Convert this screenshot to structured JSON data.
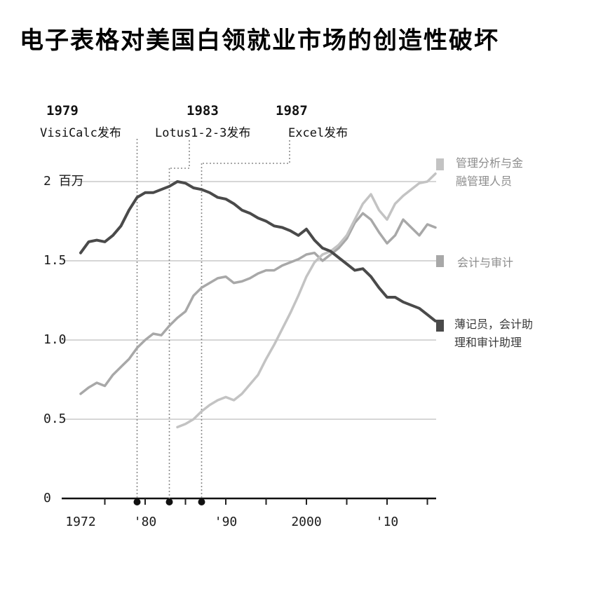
{
  "title": "电子表格对美国白领就业市场的创造性破坏",
  "legend": {
    "items": [
      {
        "lines": [
          "管理分析与金",
          "融管理人员"
        ],
        "color": "#c3c3c3",
        "text_color": "#8c8c8c"
      },
      {
        "lines": [
          "会计与审计",
          ""
        ],
        "color": "#a8a8a8",
        "text_color": "#8c8c8c"
      },
      {
        "lines": [
          "薄记员，会计助",
          "理和审计助理"
        ],
        "color": "#4a4a4a",
        "text_color": "#383838"
      }
    ]
  },
  "chart_data": {
    "type": "line",
    "title": "电子表格对美国白领就业市场的创造性破坏",
    "ylabel": "百万",
    "xlabel": "",
    "xlim": [
      1972,
      2017
    ],
    "ylim": [
      0,
      2.15
    ],
    "grid": true,
    "legend_position": "right",
    "yticks": [
      {
        "value": 0,
        "label": "0"
      },
      {
        "value": 0.5,
        "label": "0.5"
      },
      {
        "value": 1.0,
        "label": "1.0"
      },
      {
        "value": 1.5,
        "label": "1.5"
      },
      {
        "value": 2.0,
        "label": "2 百万"
      }
    ],
    "xticks": [
      {
        "year": 1972,
        "label": "1972"
      },
      {
        "year": 1980,
        "label": "'80"
      },
      {
        "year": 1990,
        "label": "'90"
      },
      {
        "year": 2000,
        "label": "2000"
      },
      {
        "year": 2010,
        "label": "'10"
      }
    ],
    "events": [
      {
        "year": 1979,
        "year_label": "1979",
        "label": "VisiCalc发布"
      },
      {
        "year": 1983,
        "year_label": "1983",
        "label": "Lotus1-2-3发布"
      },
      {
        "year": 1987,
        "year_label": "1987",
        "label": "Excel发布"
      }
    ],
    "series": [
      {
        "id": "accountants",
        "name": "会计与审计",
        "color": "#a8a8a8",
        "width": 3.5,
        "points": [
          [
            1972,
            0.66
          ],
          [
            1973,
            0.7
          ],
          [
            1974,
            0.73
          ],
          [
            1975,
            0.71
          ],
          [
            1976,
            0.78
          ],
          [
            1977,
            0.83
          ],
          [
            1978,
            0.88
          ],
          [
            1979,
            0.95
          ],
          [
            1980,
            1.0
          ],
          [
            1981,
            1.04
          ],
          [
            1982,
            1.03
          ],
          [
            1983,
            1.09
          ],
          [
            1984,
            1.14
          ],
          [
            1985,
            1.18
          ],
          [
            1986,
            1.28
          ],
          [
            1987,
            1.33
          ],
          [
            1988,
            1.36
          ],
          [
            1989,
            1.39
          ],
          [
            1990,
            1.4
          ],
          [
            1991,
            1.36
          ],
          [
            1992,
            1.37
          ],
          [
            1993,
            1.39
          ],
          [
            1994,
            1.42
          ],
          [
            1995,
            1.44
          ],
          [
            1996,
            1.44
          ],
          [
            1997,
            1.47
          ],
          [
            1998,
            1.49
          ],
          [
            1999,
            1.51
          ],
          [
            2000,
            1.54
          ],
          [
            2001,
            1.55
          ],
          [
            2002,
            1.5
          ],
          [
            2003,
            1.54
          ],
          [
            2004,
            1.58
          ],
          [
            2005,
            1.64
          ],
          [
            2006,
            1.74
          ],
          [
            2007,
            1.8
          ],
          [
            2008,
            1.76
          ],
          [
            2009,
            1.68
          ],
          [
            2010,
            1.61
          ],
          [
            2011,
            1.66
          ],
          [
            2012,
            1.76
          ],
          [
            2013,
            1.71
          ],
          [
            2014,
            1.66
          ],
          [
            2015,
            1.73
          ],
          [
            2016,
            1.71
          ]
        ]
      },
      {
        "id": "management",
        "name": "管理分析与金融管理人员",
        "color": "#c3c3c3",
        "width": 3.5,
        "points": [
          [
            1984,
            0.45
          ],
          [
            1985,
            0.47
          ],
          [
            1986,
            0.5
          ],
          [
            1987,
            0.55
          ],
          [
            1988,
            0.59
          ],
          [
            1989,
            0.62
          ],
          [
            1990,
            0.64
          ],
          [
            1991,
            0.62
          ],
          [
            1992,
            0.66
          ],
          [
            1993,
            0.72
          ],
          [
            1994,
            0.78
          ],
          [
            1995,
            0.88
          ],
          [
            1996,
            0.97
          ],
          [
            1997,
            1.07
          ],
          [
            1998,
            1.17
          ],
          [
            1999,
            1.28
          ],
          [
            2000,
            1.4
          ],
          [
            2001,
            1.49
          ],
          [
            2002,
            1.54
          ],
          [
            2003,
            1.56
          ],
          [
            2004,
            1.6
          ],
          [
            2005,
            1.66
          ],
          [
            2006,
            1.76
          ],
          [
            2007,
            1.86
          ],
          [
            2008,
            1.92
          ],
          [
            2009,
            1.82
          ],
          [
            2010,
            1.76
          ],
          [
            2011,
            1.86
          ],
          [
            2012,
            1.91
          ],
          [
            2013,
            1.95
          ],
          [
            2014,
            1.99
          ],
          [
            2015,
            2.0
          ],
          [
            2016,
            2.05
          ]
        ]
      },
      {
        "id": "bookkeepers",
        "name": "薄记员，会计助理和审计助理",
        "color": "#4a4a4a",
        "width": 4,
        "points": [
          [
            1972,
            1.55
          ],
          [
            1973,
            1.62
          ],
          [
            1974,
            1.63
          ],
          [
            1975,
            1.62
          ],
          [
            1976,
            1.66
          ],
          [
            1977,
            1.72
          ],
          [
            1978,
            1.82
          ],
          [
            1979,
            1.9
          ],
          [
            1980,
            1.93
          ],
          [
            1981,
            1.93
          ],
          [
            1982,
            1.95
          ],
          [
            1983,
            1.97
          ],
          [
            1984,
            2.0
          ],
          [
            1985,
            1.99
          ],
          [
            1986,
            1.96
          ],
          [
            1987,
            1.95
          ],
          [
            1988,
            1.93
          ],
          [
            1989,
            1.9
          ],
          [
            1990,
            1.89
          ],
          [
            1991,
            1.86
          ],
          [
            1992,
            1.82
          ],
          [
            1993,
            1.8
          ],
          [
            1994,
            1.77
          ],
          [
            1995,
            1.75
          ],
          [
            1996,
            1.72
          ],
          [
            1997,
            1.71
          ],
          [
            1998,
            1.69
          ],
          [
            1999,
            1.66
          ],
          [
            2000,
            1.7
          ],
          [
            2001,
            1.63
          ],
          [
            2002,
            1.58
          ],
          [
            2003,
            1.56
          ],
          [
            2004,
            1.52
          ],
          [
            2005,
            1.48
          ],
          [
            2006,
            1.44
          ],
          [
            2007,
            1.45
          ],
          [
            2008,
            1.4
          ],
          [
            2009,
            1.33
          ],
          [
            2010,
            1.27
          ],
          [
            2011,
            1.27
          ],
          [
            2012,
            1.24
          ],
          [
            2013,
            1.22
          ],
          [
            2014,
            1.2
          ],
          [
            2015,
            1.16
          ],
          [
            2016,
            1.12
          ]
        ]
      }
    ]
  }
}
